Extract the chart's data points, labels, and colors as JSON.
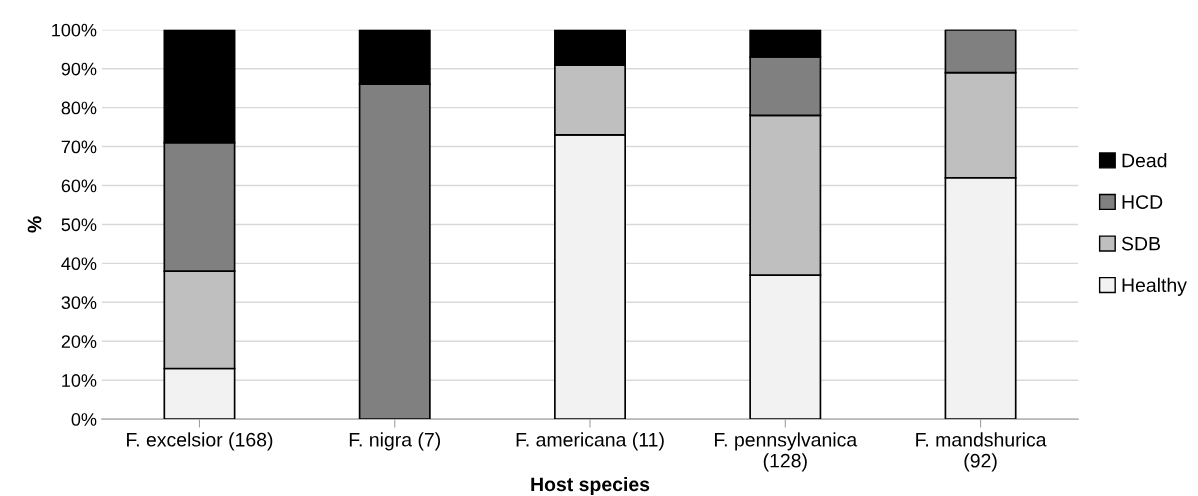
{
  "chart_data": {
    "type": "bar",
    "stacked": true,
    "xlabel": "Host species",
    "ylabel": "%",
    "categories": [
      "F. excelsior (168)",
      "F. nigra (7)",
      "F. americana (11)",
      "F. pennsylvanica\n(128)",
      "F. mandshurica\n(92)"
    ],
    "series": [
      {
        "name": "Healthy",
        "color": "#f2f2f2",
        "values": [
          13,
          0,
          73,
          37,
          62
        ]
      },
      {
        "name": "SDB",
        "color": "#bfbfbf",
        "values": [
          25,
          0,
          18,
          41,
          27
        ]
      },
      {
        "name": "HCD",
        "color": "#808080",
        "values": [
          33,
          86,
          0,
          15,
          11
        ]
      },
      {
        "name": "Dead",
        "color": "#000000",
        "values": [
          29,
          14,
          9,
          7,
          0
        ]
      }
    ],
    "ylim": [
      0,
      100
    ],
    "yticks": [
      {
        "value": 0,
        "label": "0%"
      },
      {
        "value": 10,
        "label": "10%"
      },
      {
        "value": 20,
        "label": "20%"
      },
      {
        "value": 30,
        "label": "30%"
      },
      {
        "value": 40,
        "label": "40%"
      },
      {
        "value": 50,
        "label": "50%"
      },
      {
        "value": 60,
        "label": "60%"
      },
      {
        "value": 70,
        "label": "70%"
      },
      {
        "value": 80,
        "label": "80%"
      },
      {
        "value": 90,
        "label": "90%"
      },
      {
        "value": 100,
        "label": "100%"
      }
    ],
    "grid": "y",
    "legend": "right"
  }
}
